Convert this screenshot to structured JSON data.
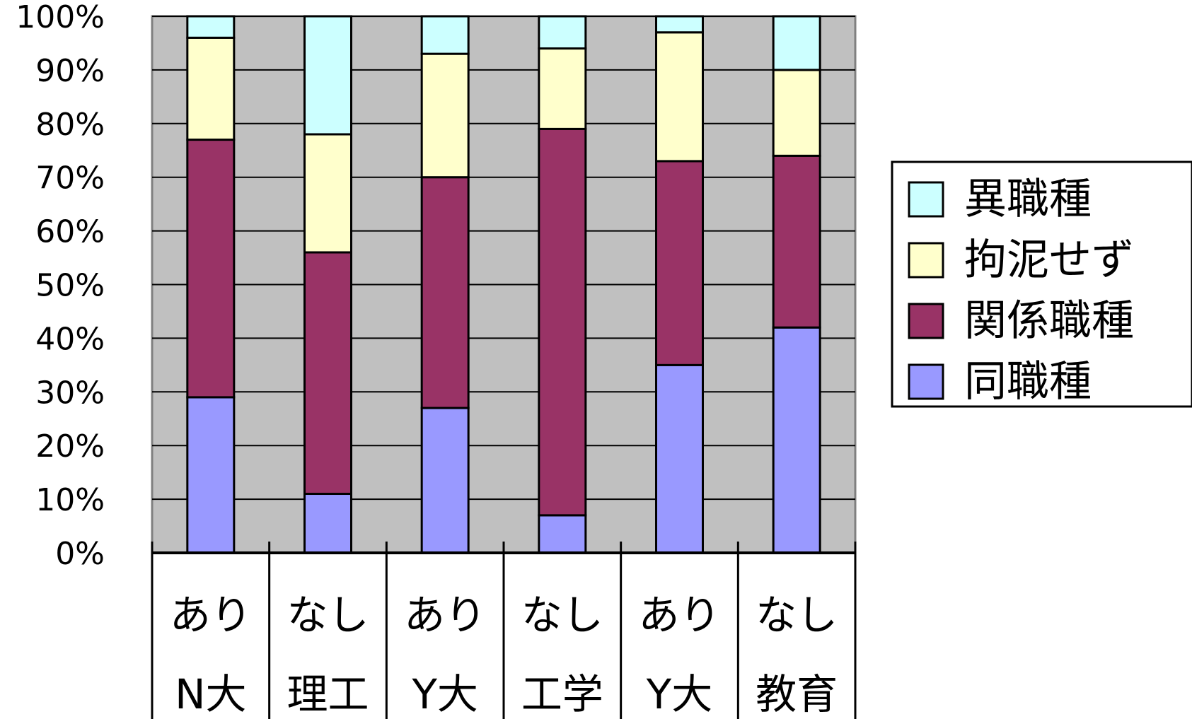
{
  "chart_data": {
    "type": "bar",
    "stacked": true,
    "percent": true,
    "categories": [
      [
        "あり",
        "N大"
      ],
      [
        "なし",
        "理工"
      ],
      [
        "あり",
        "Y大"
      ],
      [
        "なし",
        "工学"
      ],
      [
        "あり",
        "Y大"
      ],
      [
        "なし",
        "教育"
      ]
    ],
    "series": [
      {
        "name": "同職種",
        "color": "#9999ff",
        "values": [
          29,
          11,
          27,
          7,
          35,
          42
        ]
      },
      {
        "name": "関係職種",
        "color": "#993366",
        "values": [
          48,
          45,
          43,
          72,
          38,
          32
        ]
      },
      {
        "name": "拘泥せず",
        "color": "#ffffcc",
        "values": [
          19,
          22,
          23,
          15,
          24,
          16
        ]
      },
      {
        "name": "異職種",
        "color": "#ccffff",
        "values": [
          4,
          22,
          7,
          6,
          3,
          10
        ]
      }
    ],
    "yticks": [
      "0%",
      "10%",
      "20%",
      "30%",
      "40%",
      "50%",
      "60%",
      "70%",
      "80%",
      "90%",
      "100%"
    ],
    "ylim": [
      0,
      100
    ],
    "grid": true,
    "plot_background": "#c0c0c0",
    "legend_position": "right",
    "legend_order": [
      "異職種",
      "拘泥せず",
      "関係職種",
      "同職種"
    ]
  }
}
